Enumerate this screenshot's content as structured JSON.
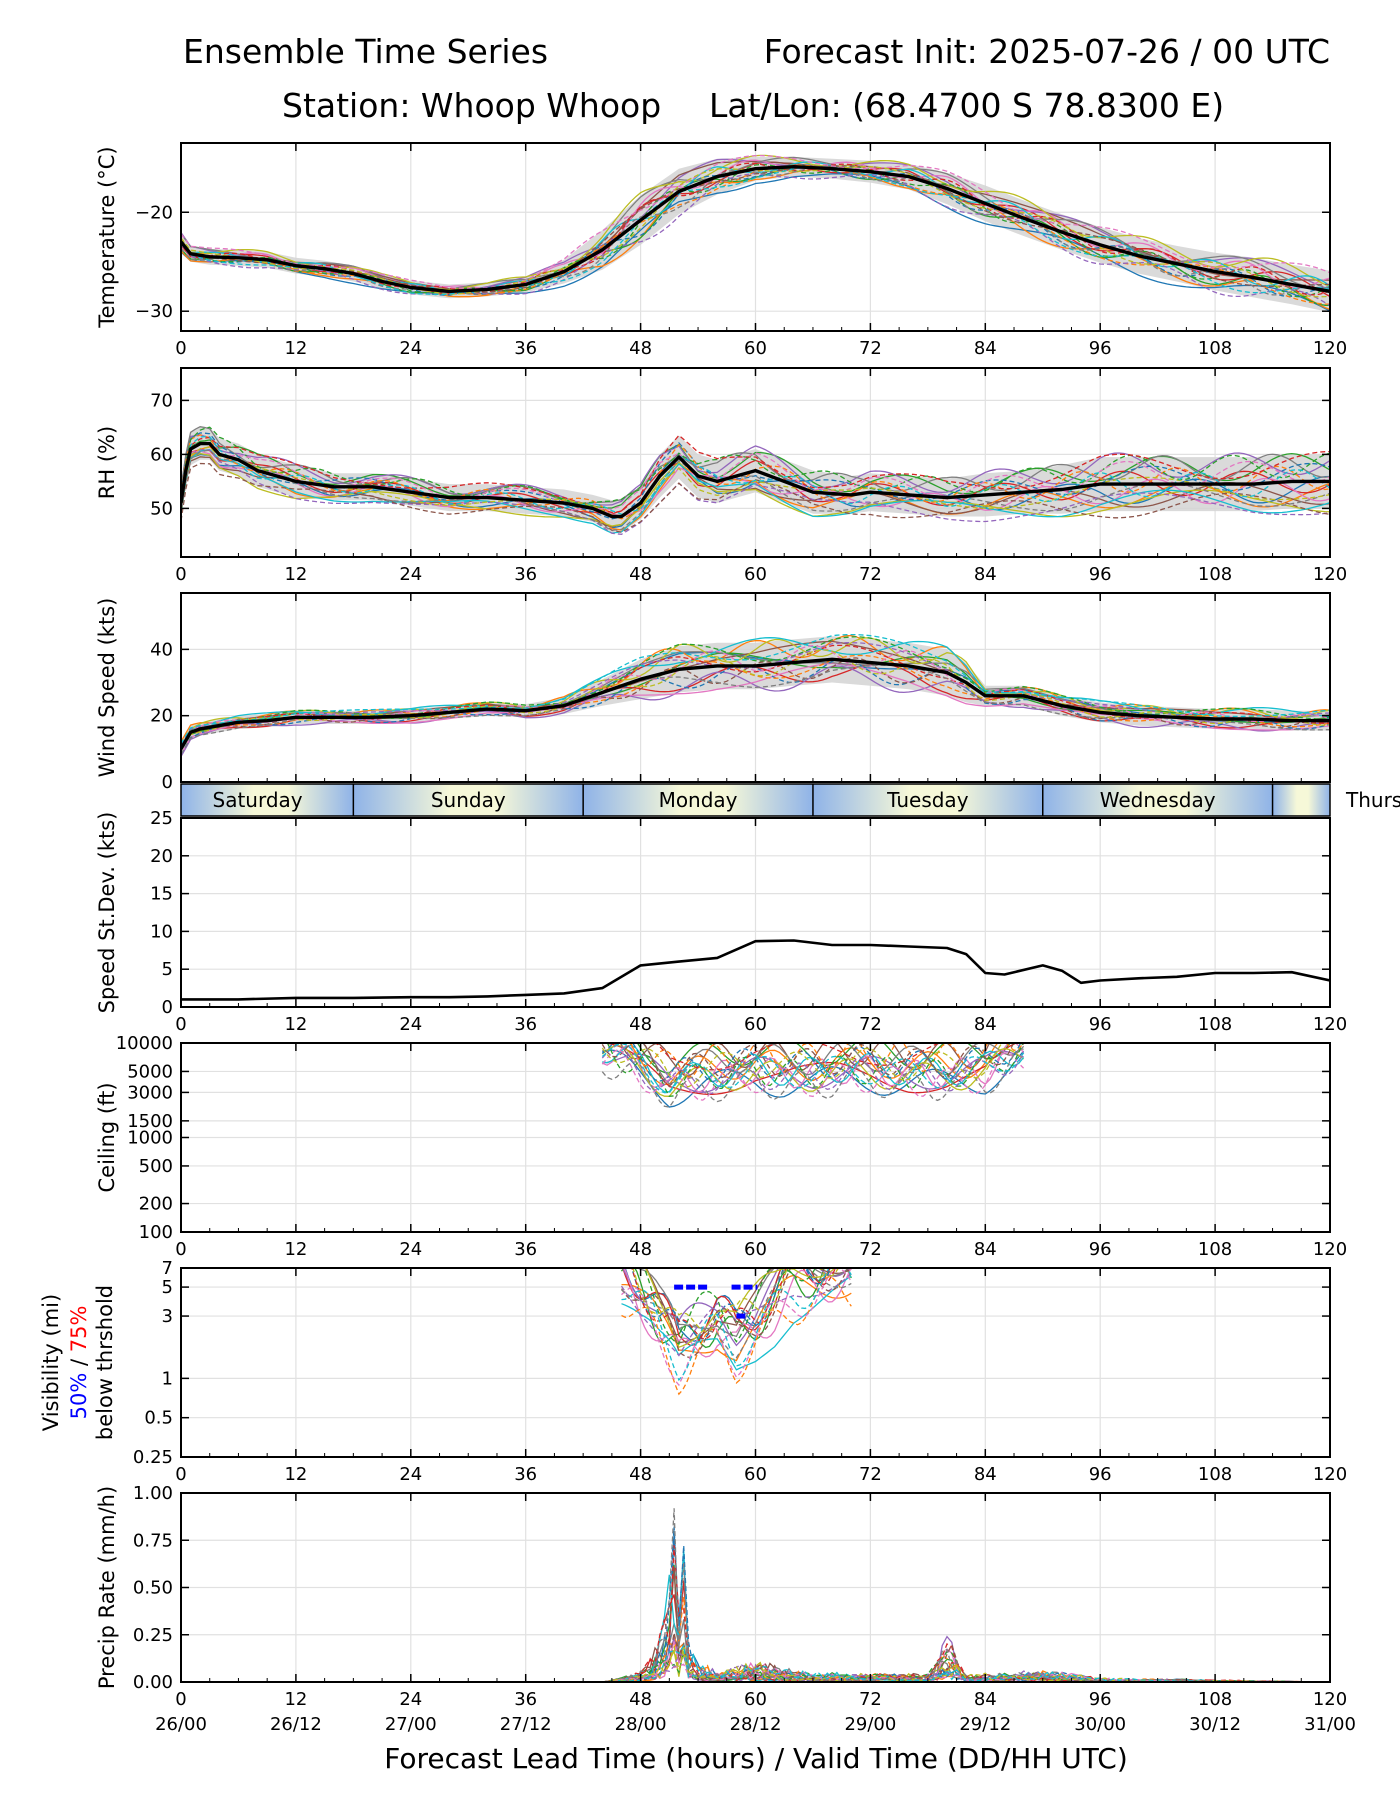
{
  "header": {
    "title_left": "Ensemble Time Series",
    "title_right": "Forecast Init: 2025-07-26 / 00 UTC",
    "station": "Station: Whoop Whoop",
    "latlon": "Lat/Lon: (68.4700 S 78.8300 E)"
  },
  "colors": {
    "mean": "#000000",
    "spread": "#d3d3d3",
    "members": [
      "#1f77b4",
      "#ff7f0e",
      "#2ca02c",
      "#d62728",
      "#9467bd",
      "#8c564b",
      "#e377c2",
      "#7f7f7f",
      "#bcbd22",
      "#17becf"
    ],
    "vis50": "#0000ff",
    "vis75": "#ff0000"
  },
  "xaxis": {
    "label": "Forecast Lead Time (hours) / Valid Time (DD/HH UTC)",
    "ticks": [
      0,
      12,
      24,
      36,
      48,
      60,
      72,
      84,
      96,
      108,
      120
    ],
    "valid_labels": [
      "26/00",
      "26/12",
      "27/00",
      "27/12",
      "28/00",
      "28/12",
      "29/00",
      "29/12",
      "30/00",
      "30/12",
      "31/00"
    ]
  },
  "days": [
    "Saturday",
    "Sunday",
    "Monday",
    "Tuesday",
    "Wednesday",
    "Thursday"
  ],
  "vis_legend": {
    "part1": "Visibility (mi)",
    "blue": "50%",
    "sep": " / ",
    "red": "75%",
    "part2": "below thrshold"
  },
  "chart_data": [
    {
      "id": "temperature",
      "type": "line",
      "ylabel": "Temperature (°C)",
      "ylim": [
        -32,
        -13
      ],
      "yticks": [
        -30,
        -20
      ],
      "yticklabels": [
        "−30",
        "−20"
      ],
      "grid": true,
      "x": [
        0,
        1,
        3,
        6,
        9,
        12,
        15,
        18,
        21,
        24,
        28,
        32,
        36,
        40,
        44,
        48,
        52,
        56,
        60,
        64,
        68,
        72,
        76,
        80,
        84,
        88,
        92,
        96,
        100,
        104,
        108,
        112,
        116,
        120
      ],
      "series": [
        {
          "values": [
            -23.0,
            -24.2,
            -24.5,
            -24.6,
            -24.8,
            -25.4,
            -25.7,
            -26.2,
            -27.0,
            -27.6,
            -28.0,
            -27.8,
            -27.3,
            -26.0,
            -23.8,
            -20.8,
            -17.9,
            -16.4,
            -15.6,
            -15.4,
            -15.6,
            -15.9,
            -16.4,
            -17.6,
            -19.1,
            -20.6,
            -22.0,
            -23.3,
            -24.4,
            -25.2,
            -26.0,
            -26.6,
            -27.3,
            -28.0
          ]
        }
      ],
      "spread_half": [
        1.0,
        0.8,
        0.8,
        0.8,
        0.8,
        0.8,
        0.8,
        0.8,
        0.7,
        0.7,
        0.7,
        0.7,
        0.8,
        1.2,
        2.0,
        2.5,
        2.3,
        1.8,
        1.2,
        1.0,
        1.0,
        1.1,
        1.3,
        1.6,
        1.8,
        1.8,
        1.8,
        1.8,
        1.8,
        1.8,
        1.9,
        2.0,
        2.0,
        2.1
      ]
    },
    {
      "id": "rh",
      "type": "line",
      "ylabel": "RH (%)",
      "ylim": [
        41,
        76
      ],
      "yticks": [
        50,
        60,
        70
      ],
      "yticklabels": [
        "50",
        "60",
        "70"
      ],
      "grid": true,
      "x": [
        0,
        0.5,
        1,
        2,
        3,
        4,
        6,
        8,
        10,
        12,
        16,
        20,
        24,
        28,
        32,
        36,
        40,
        43,
        45,
        46,
        48,
        50,
        52,
        54,
        56,
        58,
        60,
        63,
        66,
        70,
        72,
        76,
        80,
        84,
        88,
        92,
        96,
        100,
        104,
        108,
        112,
        116,
        120
      ],
      "series": [
        {
          "values": [
            51,
            57,
            61,
            62,
            62,
            60,
            59,
            57,
            56,
            55,
            54,
            54,
            53,
            52,
            52,
            51.5,
            51,
            50,
            48.5,
            48.5,
            51,
            56,
            59.5,
            56,
            55,
            56,
            57,
            55,
            53,
            52.5,
            53,
            52.5,
            52,
            52.5,
            53,
            53.5,
            54.5,
            54.5,
            54.5,
            54.5,
            54.5,
            55,
            55
          ]
        }
      ],
      "spread_half": [
        3,
        3,
        3,
        3,
        3,
        3,
        3,
        3,
        3,
        3,
        2.5,
        2.5,
        2.5,
        2.5,
        2.5,
        2.5,
        2.5,
        2.5,
        3,
        3,
        3,
        4,
        4,
        4,
        4,
        4,
        4,
        4,
        4,
        3.5,
        3.5,
        3.5,
        3.5,
        4,
        4,
        4.5,
        5,
        5,
        5,
        5,
        5,
        5,
        5
      ]
    },
    {
      "id": "wind",
      "type": "line",
      "ylabel": "Wind Speed (kts)",
      "ylim": [
        0,
        57
      ],
      "yticks": [
        0,
        20,
        40
      ],
      "yticklabels": [
        "0",
        "20",
        "40"
      ],
      "grid": true,
      "x": [
        0,
        1,
        2,
        4,
        6,
        9,
        12,
        16,
        20,
        24,
        28,
        32,
        36,
        40,
        44,
        48,
        52,
        56,
        60,
        64,
        68,
        72,
        76,
        80,
        82,
        84,
        88,
        92,
        96,
        100,
        104,
        108,
        112,
        116,
        120
      ],
      "series": [
        {
          "values": [
            10,
            15,
            16,
            17,
            18,
            18.5,
            19.5,
            19.5,
            19.5,
            20,
            21,
            22,
            21.5,
            23,
            27,
            31,
            34,
            35,
            35,
            36,
            37,
            36,
            35,
            33,
            30,
            26,
            26,
            23,
            21,
            20,
            19.5,
            19,
            19,
            18.5,
            18.5
          ]
        }
      ],
      "spread_half": [
        2,
        2,
        2,
        2,
        2,
        2,
        2,
        2,
        2,
        2,
        2,
        2,
        2,
        2.5,
        4,
        6,
        7,
        7,
        7,
        7,
        7,
        7,
        7,
        7,
        6,
        3,
        3,
        3,
        3,
        3,
        3,
        3,
        3,
        3,
        3
      ]
    },
    {
      "id": "spd_sd",
      "type": "line",
      "ylabel": "Speed St.Dev. (kts)",
      "ylim": [
        0,
        25
      ],
      "yticks": [
        0,
        5,
        10,
        15,
        20,
        25
      ],
      "yticklabels": [
        "0",
        "5",
        "10",
        "15",
        "20",
        "25"
      ],
      "grid": true,
      "x": [
        0,
        6,
        12,
        18,
        24,
        28,
        32,
        36,
        40,
        44,
        48,
        52,
        56,
        60,
        64,
        68,
        72,
        76,
        80,
        82,
        84,
        86,
        90,
        92,
        94,
        96,
        100,
        104,
        108,
        112,
        116,
        120
      ],
      "series": [
        {
          "values": [
            1.0,
            1.0,
            1.2,
            1.2,
            1.3,
            1.3,
            1.4,
            1.6,
            1.8,
            2.5,
            5.5,
            6.0,
            6.5,
            8.7,
            8.8,
            8.2,
            8.2,
            8.0,
            7.8,
            7.0,
            4.5,
            4.3,
            5.5,
            4.8,
            3.2,
            3.5,
            3.8,
            4.0,
            4.5,
            4.5,
            4.6,
            3.5
          ]
        }
      ]
    },
    {
      "id": "ceiling",
      "type": "line",
      "ylabel": "Ceiling (ft)",
      "yscale": "log",
      "ylim": [
        100,
        10000
      ],
      "yticks": [
        100,
        200,
        500,
        1000,
        1500,
        3000,
        5000,
        10000
      ],
      "yticklabels": [
        "100",
        "200",
        "500",
        "1000",
        "1500",
        "3000",
        "5000",
        "10000"
      ],
      "grid": true,
      "x": [
        44,
        48,
        51,
        54,
        57,
        60,
        63,
        66,
        69,
        72,
        76,
        80,
        84,
        88
      ],
      "series": [
        {
          "values": [
            9000,
            6000,
            4000,
            4500,
            5000,
            5500,
            5000,
            5000,
            5500,
            5500,
            5000,
            5000,
            5500,
            9000
          ]
        }
      ]
    },
    {
      "id": "visibility",
      "type": "line",
      "ylabel": "",
      "yscale": "log",
      "ylim": [
        0.25,
        7
      ],
      "yticks": [
        0.25,
        0.5,
        1,
        3,
        5,
        7
      ],
      "yticklabels": [
        "0.25",
        "0.5",
        "1",
        "3",
        "5",
        "7"
      ],
      "grid": true,
      "x": [
        46,
        48,
        50,
        52,
        54,
        56,
        58,
        60,
        62,
        64,
        66,
        70
      ],
      "series": [
        {
          "values": [
            6,
            4,
            2.5,
            1.5,
            2.0,
            2.5,
            1.8,
            2.5,
            3.5,
            5,
            5.5,
            6.5
          ]
        }
      ],
      "thresholds": [
        {
          "level": "50%",
          "x0": 51.5,
          "x1": 55.0,
          "y": 5
        },
        {
          "level": "50%",
          "x0": 57.5,
          "x1": 60.2,
          "y": 5
        },
        {
          "level": "50%",
          "x0": 58.0,
          "x1": 59.0,
          "y": 3
        }
      ]
    },
    {
      "id": "precip",
      "type": "line",
      "ylabel": "Precip Rate (mm/h)",
      "ylim": [
        0,
        1
      ],
      "yticks": [
        0,
        0.25,
        0.5,
        0.75,
        1
      ],
      "yticklabels": [
        "0.00",
        "0.25",
        "0.50",
        "0.75",
        "1.00"
      ],
      "grid": true,
      "x": [
        0,
        44,
        46,
        48,
        49,
        50,
        51,
        51.5,
        52,
        52.5,
        53,
        54,
        56,
        58,
        60,
        62,
        64,
        70,
        78,
        79,
        80,
        81,
        82,
        86,
        90,
        96,
        120
      ],
      "series": [
        {
          "values": [
            0,
            0,
            0.01,
            0.03,
            0.06,
            0.12,
            0.25,
            0.45,
            0.2,
            0.35,
            0.1,
            0.05,
            0.03,
            0.04,
            0.05,
            0.04,
            0.03,
            0.02,
            0.02,
            0.06,
            0.12,
            0.08,
            0.02,
            0.02,
            0.03,
            0.01,
            0
          ]
        }
      ]
    }
  ]
}
